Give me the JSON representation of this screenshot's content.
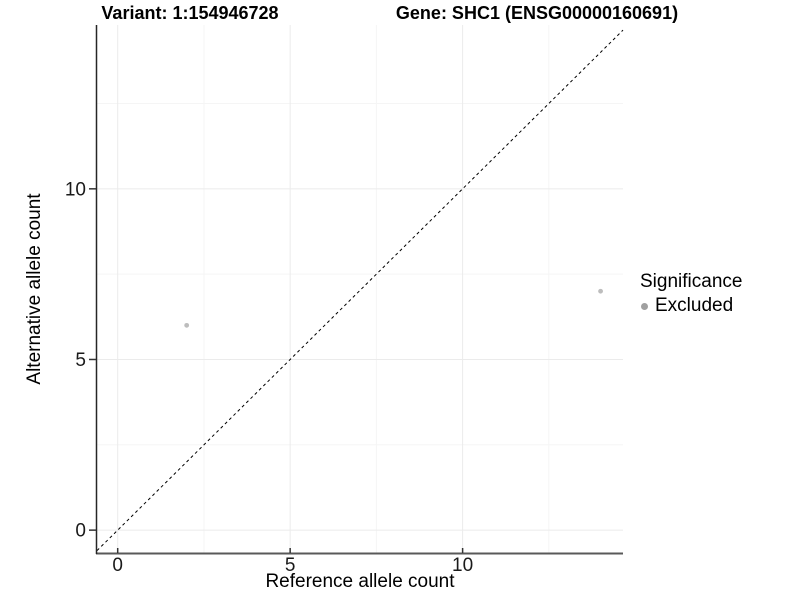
{
  "titles": {
    "variant": "Variant: 1:154946728",
    "gene": "Gene: SHC1 (ENSG00000160691)"
  },
  "chart_data": {
    "type": "scatter",
    "title_left": "Variant: 1:154946728",
    "title_right": "Gene: SHC1 (ENSG00000160691)",
    "xlabel": "Reference allele count",
    "ylabel": "Alternative allele count",
    "points": [
      {
        "x": 2,
        "y": 6,
        "significance": "Excluded"
      },
      {
        "x": 14,
        "y": 7,
        "significance": "Excluded"
      }
    ],
    "identity_line": {
      "shown": true,
      "style": "dashed"
    },
    "xticks": [
      0,
      5,
      10
    ],
    "yticks": [
      0,
      5,
      10
    ],
    "xminor": [
      2.5,
      7.5,
      12.5
    ],
    "yminor": [
      2.5,
      7.5,
      12.5
    ],
    "xlim": [
      -0.6,
      14.65
    ],
    "ylim": [
      -0.67,
      14.8
    ],
    "grid": true,
    "legend": {
      "title": "Significance",
      "position": "right",
      "items": [
        {
          "label": "Excluded",
          "color": "#a0a0a0"
        }
      ]
    }
  },
  "colors": {
    "point": "#bdbdbd",
    "legend_key": "#a0a0a0",
    "grid_major": "#ebebeb",
    "grid_minor": "#f5f5f5",
    "axis_line_x": "#595959",
    "axis_line_y": "#262626",
    "tick_mark": "#333333",
    "tick_text": "#1a1a1a",
    "identity_line": "#000000"
  }
}
